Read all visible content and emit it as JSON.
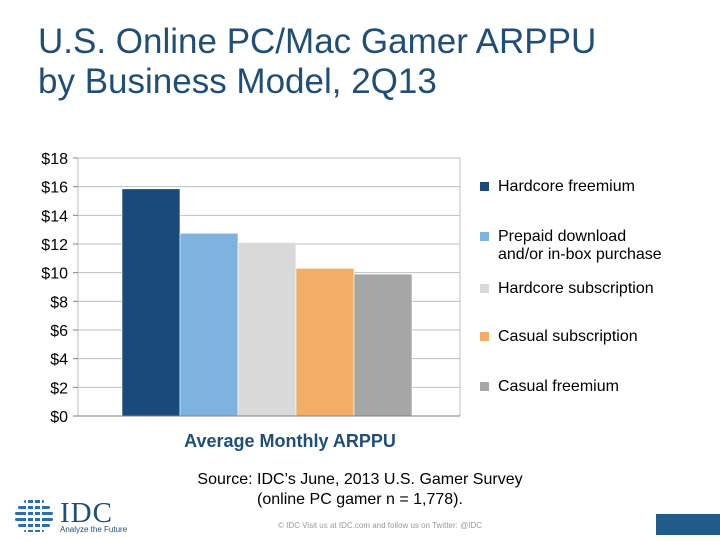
{
  "title": {
    "line1": "U.S. Online PC/Mac Gamer ARPPU",
    "line2": "by Business Model, 2Q13"
  },
  "chart_data": {
    "type": "bar",
    "title": "U.S. Online PC/Mac Gamer ARPPU by Business Model, 2Q13",
    "xlabel": "Average Monthly ARPPU",
    "ylabel": "",
    "ylim": [
      0,
      18
    ],
    "yticks": [
      0,
      2,
      4,
      6,
      8,
      10,
      12,
      14,
      16,
      18
    ],
    "ytick_labels": [
      "$0",
      "$2",
      "$4",
      "$6",
      "$8",
      "$10",
      "$12",
      "$14",
      "$16",
      "$18"
    ],
    "grid": true,
    "legend_position": "right",
    "categories": [
      "Average Monthly ARPPU"
    ],
    "series": [
      {
        "name": "Hardcore freemium",
        "values": [
          15.85
        ],
        "color": "#1a4a7c"
      },
      {
        "name": "Prepaid download\nand/or in-box purchase",
        "values": [
          12.75
        ],
        "color": "#7eb3e0"
      },
      {
        "name": "Hardcore subscription",
        "values": [
          12.1
        ],
        "color": "#d9d9d9"
      },
      {
        "name": "Casual subscription",
        "values": [
          10.3
        ],
        "color": "#f2ae66"
      },
      {
        "name": "Casual freemium",
        "values": [
          9.9
        ],
        "color": "#a6a6a6"
      }
    ]
  },
  "source": {
    "line1": "Source: IDC’s June, 2013 U.S. Gamer Survey",
    "line2": "(online PC gamer n = 1,778)."
  },
  "logo": {
    "text": "IDC",
    "tagline": "Analyze the Future"
  },
  "footer": {
    "text": "© IDC   Visit us at IDC.com and follow us on Twitter: @IDC"
  },
  "colors": {
    "title": "#1f4e79",
    "accent": "#1f5c8b"
  }
}
